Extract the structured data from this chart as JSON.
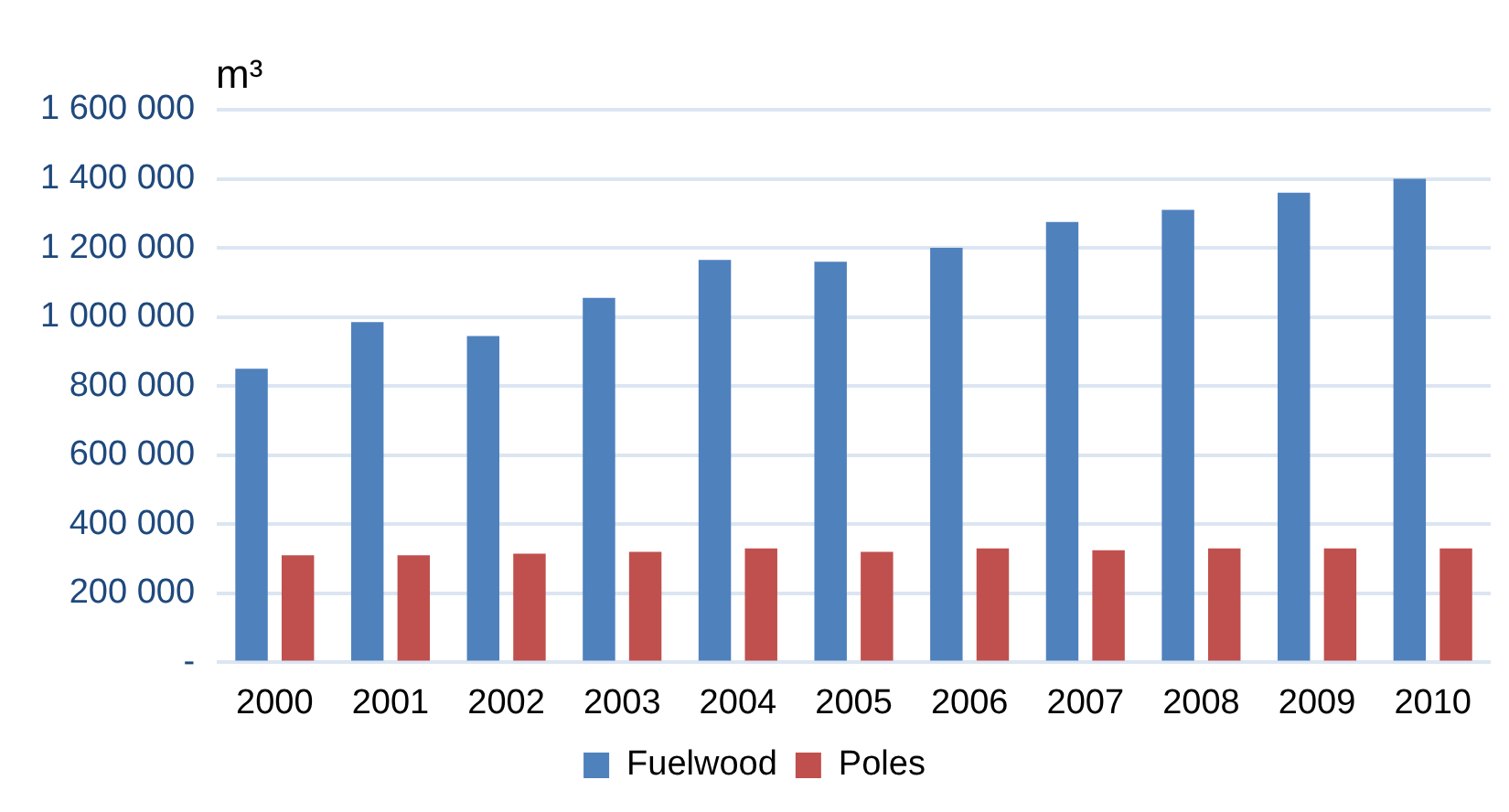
{
  "chart_data": {
    "type": "bar",
    "ylabel": "m³",
    "categories": [
      "2000",
      "2001",
      "2002",
      "2003",
      "2004",
      "2005",
      "2006",
      "2007",
      "2008",
      "2009",
      "2010"
    ],
    "series": [
      {
        "name": "Fuelwood",
        "color": "#4f81bd",
        "values": [
          850000,
          985000,
          945000,
          1055000,
          1165000,
          1160000,
          1200000,
          1275000,
          1310000,
          1360000,
          1400000
        ]
      },
      {
        "name": "Poles",
        "color": "#c0504d",
        "values": [
          310000,
          310000,
          315000,
          320000,
          330000,
          320000,
          330000,
          325000,
          330000,
          330000,
          330000
        ]
      }
    ],
    "ylim": [
      0,
      1600000
    ],
    "yticks": [
      {
        "value": 0,
        "label": "-"
      },
      {
        "value": 200000,
        "label": "200 000"
      },
      {
        "value": 400000,
        "label": "400 000"
      },
      {
        "value": 600000,
        "label": "600 000"
      },
      {
        "value": 800000,
        "label": "800 000"
      },
      {
        "value": 1000000,
        "label": "1 000 000"
      },
      {
        "value": 1200000,
        "label": "1 200 000"
      },
      {
        "value": 1400000,
        "label": "1 400 000"
      },
      {
        "value": 1600000,
        "label": "1 600 000"
      }
    ],
    "grid": "y",
    "legend": "bottom"
  }
}
